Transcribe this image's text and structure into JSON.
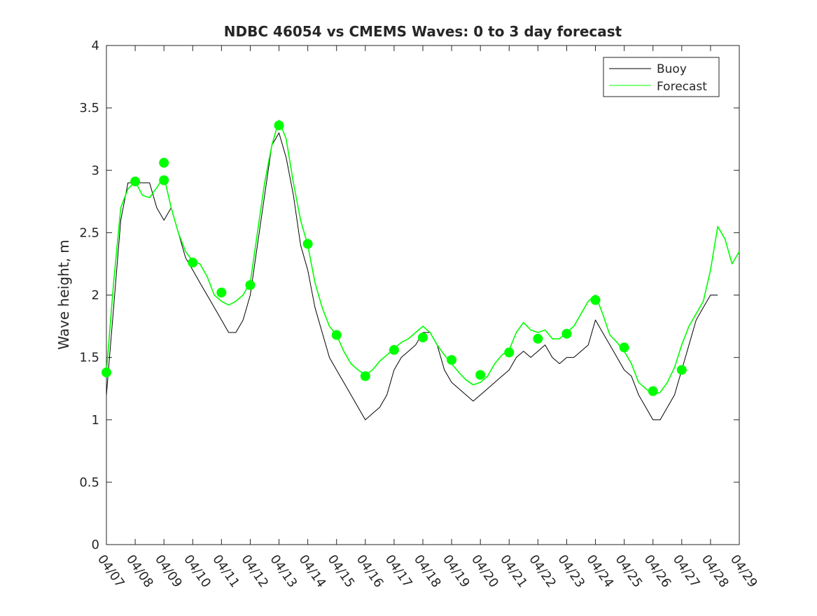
{
  "chart_data": {
    "type": "line",
    "title": "NDBC 46054 vs CMEMS Waves: 0 to 3 day forecast",
    "xlabel": "",
    "ylabel": "Wave height, m",
    "xlim": [
      "04/07",
      "04/29"
    ],
    "ylim": [
      0,
      4
    ],
    "x_ticks": [
      "04/07",
      "04/08",
      "04/09",
      "04/10",
      "04/11",
      "04/12",
      "04/13",
      "04/14",
      "04/15",
      "04/16",
      "04/17",
      "04/18",
      "04/19",
      "04/20",
      "04/21",
      "04/22",
      "04/23",
      "04/24",
      "04/25",
      "04/26",
      "04/27",
      "04/28",
      "04/29"
    ],
    "y_ticks": [
      0,
      0.5,
      1,
      1.5,
      2,
      2.5,
      3,
      3.5,
      4
    ],
    "y_tick_labels": [
      "0",
      "0.5",
      "1",
      "1.5",
      "2",
      "2.5",
      "3",
      "3.5",
      "4"
    ],
    "grid": false,
    "legend_position": "top-right",
    "colors": {
      "buoy": "#000000",
      "forecast": "#00ff00",
      "axes": "#262626"
    },
    "series": [
      {
        "name": "Buoy",
        "kind": "observed",
        "x": [
          "04/07 00:00",
          "04/07 06:00",
          "04/07 12:00",
          "04/07 18:00",
          "04/08 00:00",
          "04/08 06:00",
          "04/08 12:00",
          "04/08 18:00",
          "04/09 00:00",
          "04/09 06:00",
          "04/09 12:00",
          "04/09 18:00",
          "04/10 00:00",
          "04/10 06:00",
          "04/10 12:00",
          "04/10 18:00",
          "04/11 00:00",
          "04/11 06:00",
          "04/11 12:00",
          "04/11 18:00",
          "04/12 00:00",
          "04/12 06:00",
          "04/12 12:00",
          "04/12 18:00",
          "04/13 00:00",
          "04/13 06:00",
          "04/13 12:00",
          "04/13 18:00",
          "04/14 00:00",
          "04/14 06:00",
          "04/14 12:00",
          "04/14 18:00",
          "04/15 00:00",
          "04/15 06:00",
          "04/15 12:00",
          "04/15 18:00",
          "04/16 00:00",
          "04/16 06:00",
          "04/16 12:00",
          "04/16 18:00",
          "04/17 00:00",
          "04/17 06:00",
          "04/17 12:00",
          "04/17 18:00",
          "04/18 00:00",
          "04/18 06:00",
          "04/18 12:00",
          "04/18 18:00",
          "04/19 00:00",
          "04/19 06:00",
          "04/19 12:00",
          "04/19 18:00",
          "04/20 00:00",
          "04/20 06:00",
          "04/20 12:00",
          "04/20 18:00",
          "04/21 00:00",
          "04/21 06:00",
          "04/21 12:00",
          "04/21 18:00",
          "04/22 00:00",
          "04/22 06:00",
          "04/22 12:00",
          "04/22 18:00",
          "04/23 00:00",
          "04/23 06:00",
          "04/23 12:00",
          "04/23 18:00",
          "04/24 00:00",
          "04/24 06:00",
          "04/24 12:00",
          "04/24 18:00",
          "04/25 00:00",
          "04/25 06:00",
          "04/25 12:00",
          "04/25 18:00",
          "04/26 00:00",
          "04/26 06:00",
          "04/26 12:00",
          "04/26 18:00",
          "04/27 00:00",
          "04/27 06:00",
          "04/27 12:00",
          "04/27 18:00",
          "04/28 00:00",
          "04/28 06:00"
        ],
        "values": [
          1.2,
          1.9,
          2.6,
          2.9,
          2.9,
          2.9,
          2.9,
          2.7,
          2.6,
          2.7,
          2.5,
          2.3,
          2.2,
          2.1,
          2.0,
          1.9,
          1.8,
          1.7,
          1.7,
          1.8,
          2.0,
          2.4,
          2.8,
          3.2,
          3.3,
          3.1,
          2.8,
          2.4,
          2.2,
          1.9,
          1.7,
          1.5,
          1.4,
          1.3,
          1.2,
          1.1,
          1.0,
          1.05,
          1.1,
          1.2,
          1.4,
          1.5,
          1.55,
          1.6,
          1.7,
          1.7,
          1.6,
          1.4,
          1.3,
          1.25,
          1.2,
          1.15,
          1.2,
          1.25,
          1.3,
          1.35,
          1.4,
          1.5,
          1.55,
          1.5,
          1.55,
          1.6,
          1.5,
          1.45,
          1.5,
          1.5,
          1.55,
          1.6,
          1.8,
          1.7,
          1.6,
          1.5,
          1.4,
          1.35,
          1.2,
          1.1,
          1.0,
          1.0,
          1.1,
          1.2,
          1.4,
          1.6,
          1.8,
          1.9,
          2.0,
          2.0
        ]
      },
      {
        "name": "Forecast",
        "kind": "forecast",
        "x": [
          "04/07 00:00",
          "04/07 06:00",
          "04/07 12:00",
          "04/07 18:00",
          "04/08 00:00",
          "04/08 06:00",
          "04/08 12:00",
          "04/08 18:00",
          "04/09 00:00",
          "04/09 06:00",
          "04/09 12:00",
          "04/09 18:00",
          "04/10 00:00",
          "04/10 06:00",
          "04/10 12:00",
          "04/10 18:00",
          "04/11 00:00",
          "04/11 06:00",
          "04/11 12:00",
          "04/11 18:00",
          "04/12 00:00",
          "04/12 06:00",
          "04/12 12:00",
          "04/12 18:00",
          "04/13 00:00",
          "04/13 06:00",
          "04/13 12:00",
          "04/13 18:00",
          "04/14 00:00",
          "04/14 06:00",
          "04/14 12:00",
          "04/14 18:00",
          "04/15 00:00",
          "04/15 06:00",
          "04/15 12:00",
          "04/15 18:00",
          "04/16 00:00",
          "04/16 06:00",
          "04/16 12:00",
          "04/16 18:00",
          "04/17 00:00",
          "04/17 06:00",
          "04/17 12:00",
          "04/17 18:00",
          "04/18 00:00",
          "04/18 06:00",
          "04/18 12:00",
          "04/18 18:00",
          "04/19 00:00",
          "04/19 06:00",
          "04/19 12:00",
          "04/19 18:00",
          "04/20 00:00",
          "04/20 06:00",
          "04/20 12:00",
          "04/20 18:00",
          "04/21 00:00",
          "04/21 06:00",
          "04/21 12:00",
          "04/21 18:00",
          "04/22 00:00",
          "04/22 06:00",
          "04/22 12:00",
          "04/22 18:00",
          "04/23 00:00",
          "04/23 06:00",
          "04/23 12:00",
          "04/23 18:00",
          "04/24 00:00",
          "04/24 06:00",
          "04/24 12:00",
          "04/24 18:00",
          "04/25 00:00",
          "04/25 06:00",
          "04/25 12:00",
          "04/25 18:00",
          "04/26 00:00",
          "04/26 06:00",
          "04/26 12:00",
          "04/26 18:00",
          "04/27 00:00",
          "04/27 06:00",
          "04/27 12:00",
          "04/27 18:00",
          "04/28 00:00",
          "04/28 06:00",
          "04/28 12:00",
          "04/28 18:00",
          "04/29 00:00"
        ],
        "values": [
          1.38,
          2.1,
          2.7,
          2.85,
          2.91,
          2.8,
          2.78,
          2.86,
          2.95,
          2.7,
          2.5,
          2.35,
          2.27,
          2.25,
          2.15,
          2.0,
          1.95,
          1.92,
          1.95,
          2.0,
          2.1,
          2.5,
          2.9,
          3.2,
          3.4,
          3.25,
          2.9,
          2.6,
          2.4,
          2.1,
          1.9,
          1.75,
          1.68,
          1.55,
          1.45,
          1.4,
          1.36,
          1.4,
          1.47,
          1.52,
          1.57,
          1.62,
          1.65,
          1.7,
          1.75,
          1.7,
          1.6,
          1.52,
          1.45,
          1.38,
          1.32,
          1.28,
          1.3,
          1.35,
          1.45,
          1.52,
          1.56,
          1.7,
          1.78,
          1.72,
          1.7,
          1.72,
          1.65,
          1.65,
          1.7,
          1.75,
          1.85,
          1.95,
          2.0,
          1.85,
          1.68,
          1.62,
          1.55,
          1.45,
          1.3,
          1.25,
          1.2,
          1.22,
          1.3,
          1.42,
          1.6,
          1.75,
          1.85,
          1.95,
          2.2,
          2.55,
          2.45,
          2.25,
          2.35
        ]
      }
    ],
    "forecast_initializations": {
      "x": [
        "04/07",
        "04/08",
        "04/09",
        "04/09",
        "04/10",
        "04/11",
        "04/12",
        "04/13",
        "04/14",
        "04/15",
        "04/16",
        "04/17",
        "04/18",
        "04/19",
        "04/20",
        "04/21",
        "04/22",
        "04/23",
        "04/24",
        "04/25",
        "04/26",
        "04/27"
      ],
      "values": [
        1.38,
        2.91,
        2.92,
        3.06,
        2.26,
        2.02,
        2.08,
        3.36,
        2.41,
        1.68,
        1.35,
        1.56,
        1.66,
        1.48,
        1.36,
        1.54,
        1.65,
        1.69,
        1.96,
        1.58,
        1.23,
        1.4
      ]
    }
  }
}
